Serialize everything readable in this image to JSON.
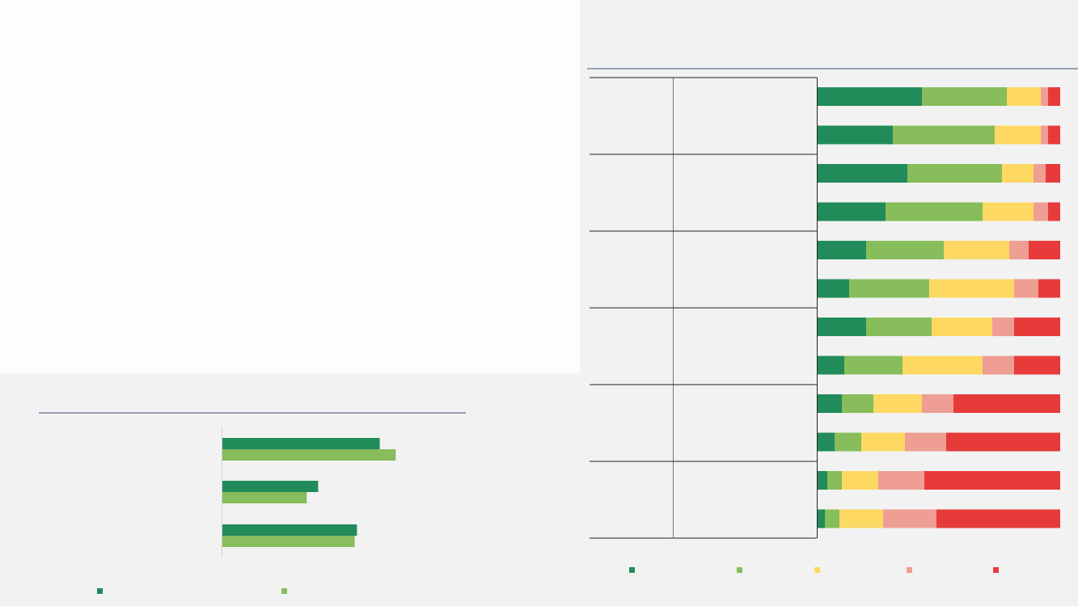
{
  "colors": {
    "very_good": "#228b5a",
    "good": "#87bd5a",
    "average": "#fdd964",
    "poor": "#ee9e93",
    "very_poor": "#e73a3a",
    "rule": "#3a4f7a"
  },
  "chart_data": [
    {
      "type": "bar",
      "orientation": "horizontal",
      "stacked": true,
      "categories": [
        "",
        "",
        "",
        "",
        "",
        "",
        "",
        "",
        "",
        "",
        "",
        ""
      ],
      "series": [
        {
          "values": [
            43,
            31,
            37,
            28,
            20,
            13,
            20,
            11,
            10,
            7,
            4,
            3
          ]
        },
        {
          "values": [
            35,
            42,
            39,
            40,
            32,
            33,
            27,
            24,
            13,
            11,
            6,
            6
          ]
        },
        {
          "values": [
            14,
            19,
            13,
            21,
            27,
            35,
            25,
            33,
            20,
            18,
            15,
            18
          ]
        },
        {
          "values": [
            3,
            3,
            5,
            6,
            8,
            10,
            9,
            13,
            13,
            17,
            19,
            22
          ]
        },
        {
          "values": [
            5,
            5,
            6,
            5,
            13,
            9,
            19,
            19,
            44,
            47,
            56,
            51
          ]
        }
      ],
      "xlim": [
        0,
        100
      ],
      "legend_position": "bottom"
    },
    {
      "type": "bar",
      "orientation": "horizontal",
      "categories": [
        "",
        "",
        ""
      ],
      "series": [
        {
          "values": [
            69,
            42,
            59
          ]
        },
        {
          "values": [
            76,
            37,
            58
          ]
        }
      ],
      "xlim": [
        0,
        100
      ],
      "legend_position": "bottom"
    }
  ]
}
